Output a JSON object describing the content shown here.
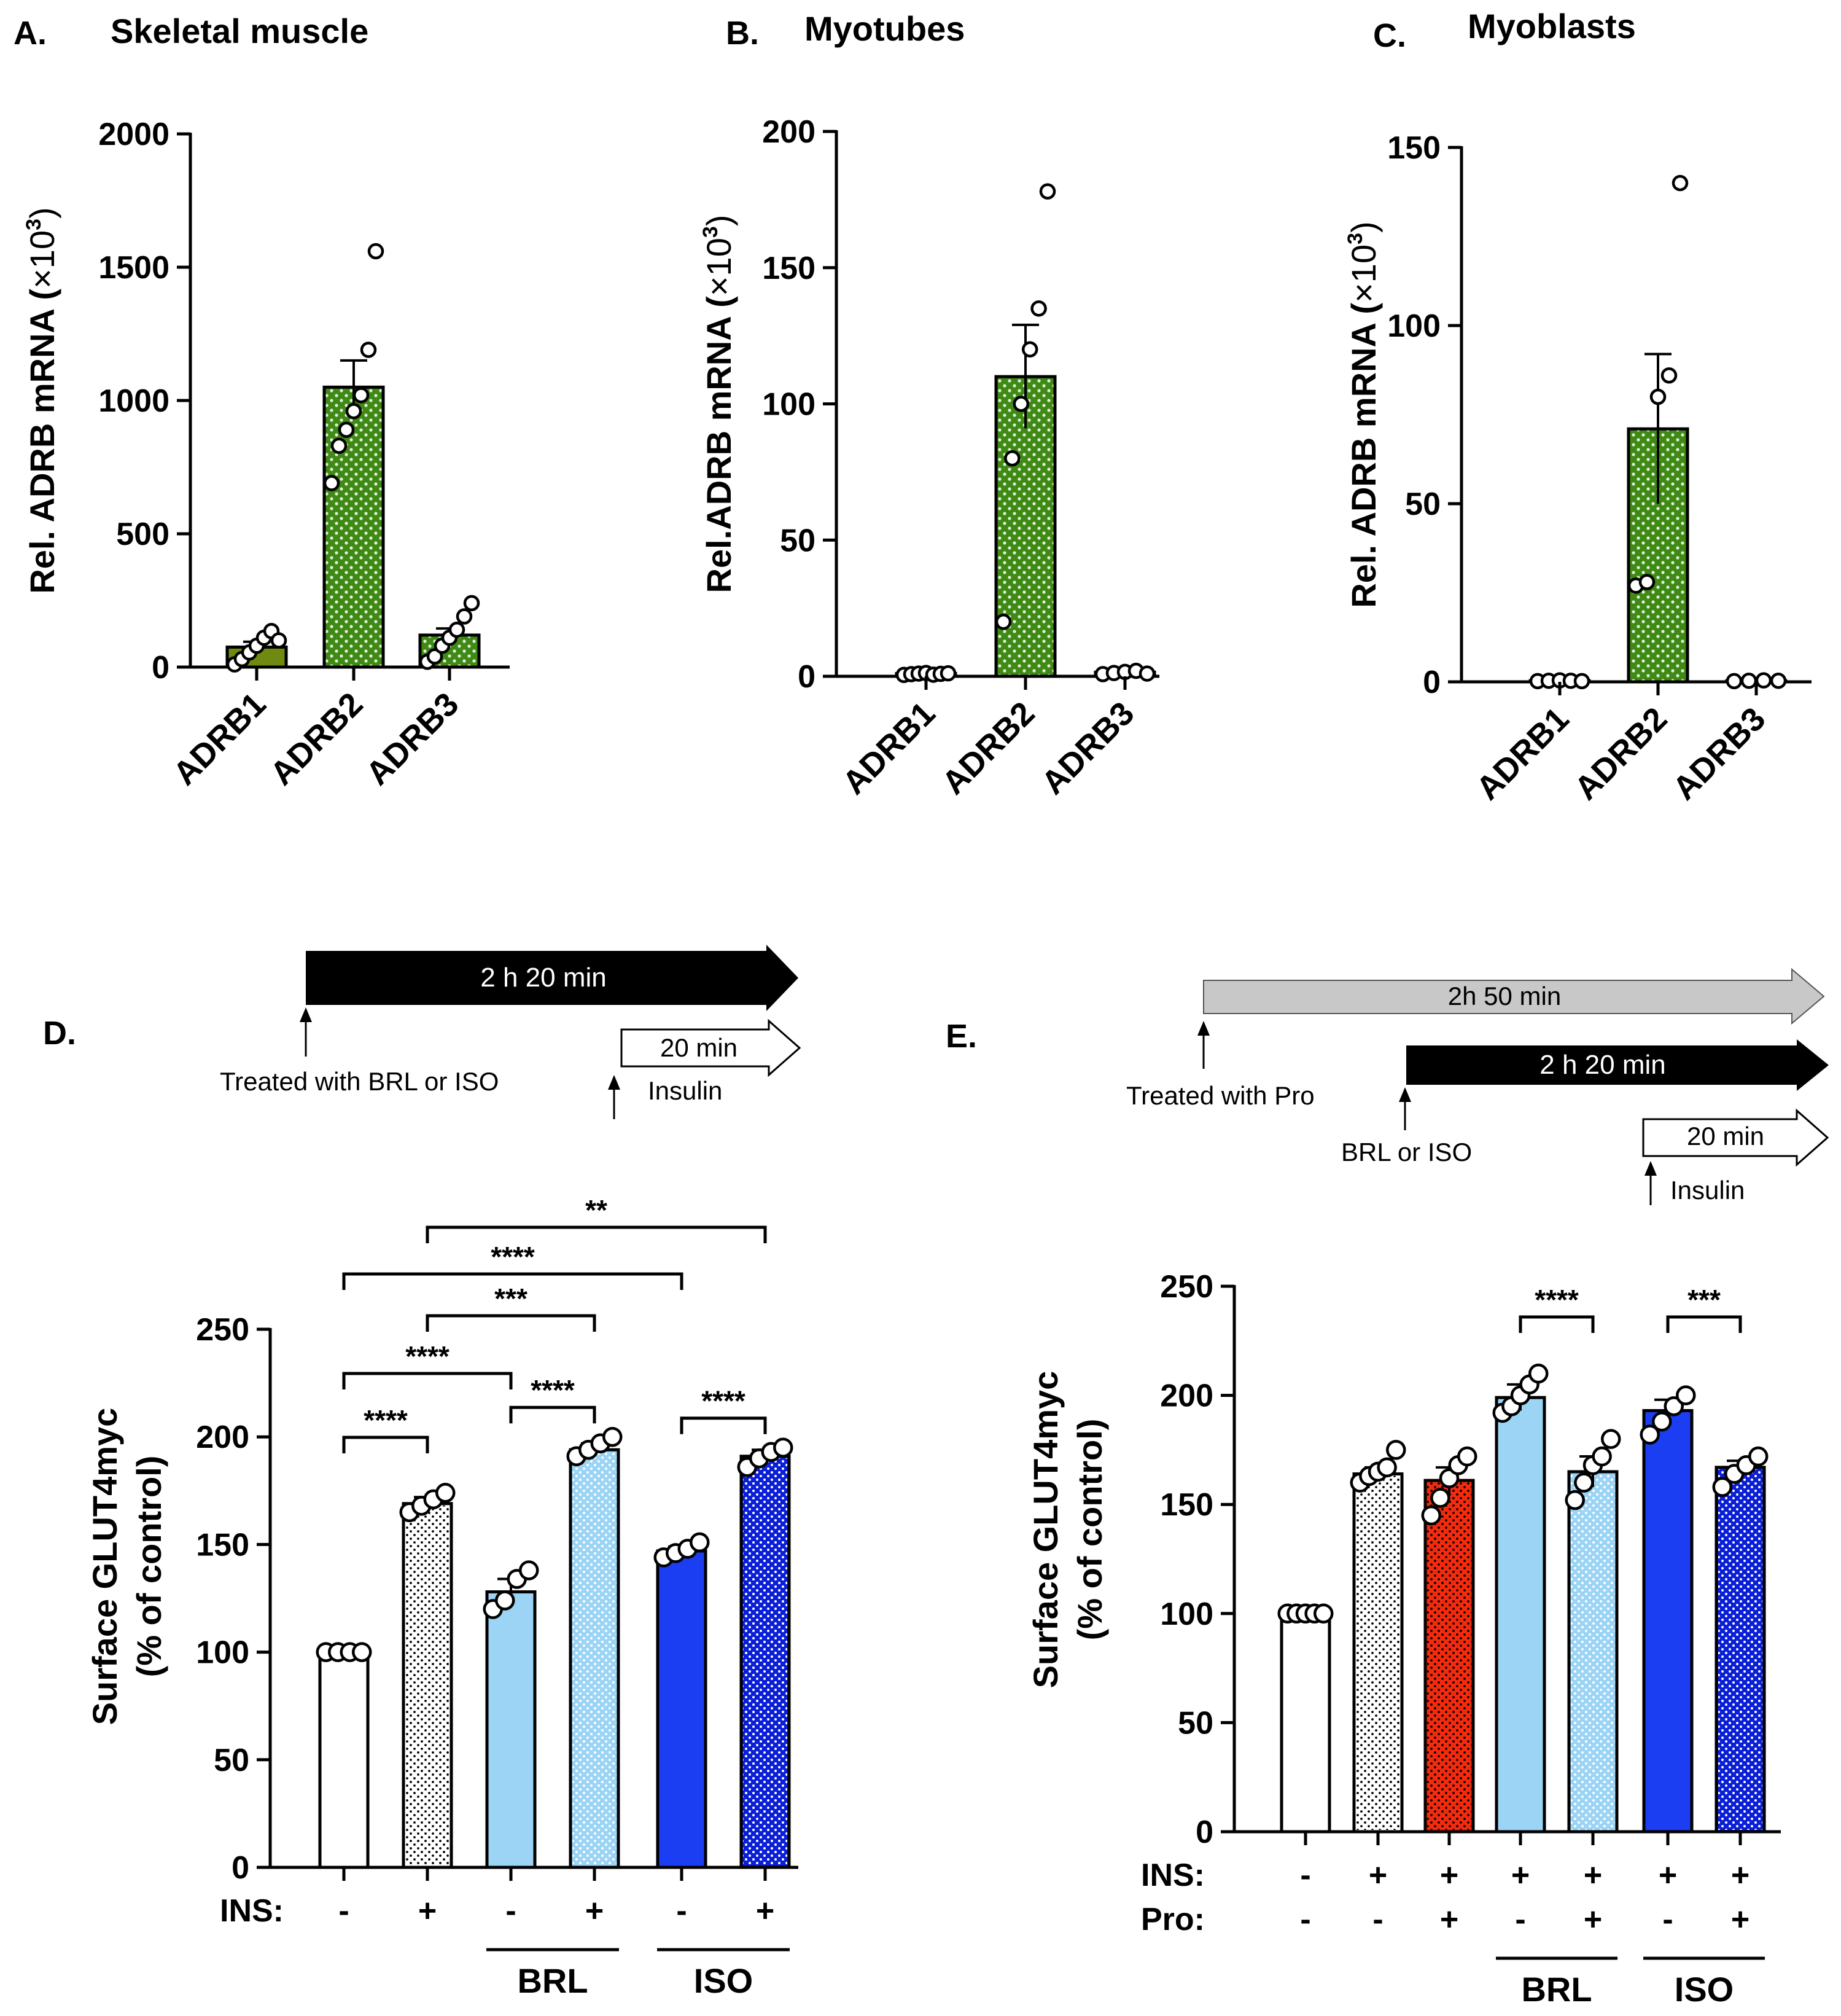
{
  "colors": {
    "olive": "#6f8a10",
    "green": "#3f8a14",
    "black": "#000000",
    "white": "#ffffff",
    "lightblue": "#9bd4f5",
    "blue": "#1c3ef2",
    "darkblue": "#0a1fd6",
    "red": "#f22b0e",
    "lightgray": "#c8c8c8"
  },
  "panels": {
    "A": {
      "letter": "A.",
      "title": "Skeletal muscle"
    },
    "B": {
      "letter": "B.",
      "title": "Myotubes"
    },
    "C": {
      "letter": "C.",
      "title": "Myoblasts"
    },
    "D": {
      "letter": "D."
    },
    "E": {
      "letter": "E."
    }
  },
  "timelines": {
    "D": {
      "main_arrow": "2 h 20 min",
      "insulin_arrow": "20 min",
      "treated_label": "Treated with BRL or ISO",
      "insulin_label": "Insulin"
    },
    "E": {
      "pro_arrow": "2h 50 min",
      "main_arrow": "2 h 20 min",
      "insulin_arrow": "20 min",
      "treated_label": "Treated with Pro",
      "brl_label": "BRL or ISO",
      "insulin_label": "Insulin"
    }
  },
  "chart_data": [
    {
      "id": "A",
      "type": "bar",
      "title": "Skeletal muscle",
      "ylabel": "Rel. ADRB mRNA (×10³)",
      "ylabel_main": "Rel. ADRB mRNA (",
      "ylabel_mult": "×10",
      "ylabel_exp": "3",
      "ylabel_close": ")",
      "ylim": [
        0,
        2000
      ],
      "yticks": [
        0,
        500,
        1000,
        1500,
        2000
      ],
      "categories": [
        "ADRB1",
        "ADRB2",
        "ADRB3"
      ],
      "values": [
        75,
        1050,
        120
      ],
      "errors": [
        20,
        100,
        25
      ],
      "fills": [
        "olive",
        "green",
        "green"
      ],
      "points": [
        [
          10,
          30,
          55,
          80,
          110,
          135,
          100
        ],
        [
          690,
          830,
          890,
          960,
          1020,
          1190,
          1560
        ],
        [
          20,
          40,
          80,
          110,
          140,
          190,
          240
        ]
      ]
    },
    {
      "id": "B",
      "type": "bar",
      "title": "Myotubes",
      "ylabel": "Rel.ADRB mRNA (×10³)",
      "ylabel_main": "Rel.ADRB mRNA (",
      "ylabel_mult": "×10",
      "ylabel_exp": "3",
      "ylabel_close": ")",
      "ylim": [
        0,
        200
      ],
      "yticks": [
        0,
        50,
        100,
        150,
        200
      ],
      "categories": [
        "ADRB1",
        "ADRB2",
        "ADRB3"
      ],
      "values": [
        1,
        110,
        1.5
      ],
      "errors": [
        0.3,
        19,
        0.4
      ],
      "fills": [
        "green",
        "green",
        "green"
      ],
      "points": [
        [
          0.5,
          0.8,
          1,
          1.2,
          0.6,
          0.9,
          1.1
        ],
        [
          20,
          80,
          100,
          120,
          135,
          178
        ],
        [
          0.8,
          1.2,
          1.6,
          2,
          1
        ]
      ]
    },
    {
      "id": "C",
      "type": "bar",
      "title": "Myoblasts",
      "ylabel": "Rel. ADRB mRNA (×10³)",
      "ylabel_main": "Rel. ADRB mRNA (",
      "ylabel_mult": "×10",
      "ylabel_exp": "3",
      "ylabel_close": ")",
      "ylim": [
        0,
        150
      ],
      "yticks": [
        0,
        50,
        100,
        150
      ],
      "categories": [
        "ADRB1",
        "ADRB2",
        "ADRB3"
      ],
      "values": [
        0.3,
        71,
        0.3
      ],
      "errors": [
        0.1,
        21,
        0.1
      ],
      "fills": [
        "green",
        "green",
        "green"
      ],
      "points": [
        [
          0.2,
          0.3,
          0.4,
          0.3,
          0.2
        ],
        [
          27,
          28,
          80,
          86,
          140
        ],
        [
          0.2,
          0.3,
          0.4,
          0.3
        ]
      ]
    },
    {
      "id": "D",
      "type": "bar",
      "ylabel_line1": "Surface GLUT4myc",
      "ylabel_line2": "(% of control)",
      "ylim": [
        0,
        250
      ],
      "yticks": [
        0,
        50,
        100,
        150,
        200,
        250
      ],
      "bars": [
        {
          "value": 100,
          "error": 0,
          "fill": "white",
          "pattern": "none",
          "points": [
            100,
            100,
            100,
            100
          ]
        },
        {
          "value": 169,
          "error": 3,
          "fill": "white",
          "pattern": "dark",
          "points": [
            165,
            168,
            171,
            174
          ]
        },
        {
          "value": 128,
          "error": 6,
          "fill": "lightblue",
          "pattern": "none",
          "points": [
            120,
            124,
            134,
            138
          ]
        },
        {
          "value": 194,
          "error": 3,
          "fill": "lightblue",
          "pattern": "light",
          "points": [
            191,
            194,
            197,
            200
          ]
        },
        {
          "value": 147,
          "error": 2,
          "fill": "blue",
          "pattern": "none",
          "points": [
            144,
            146,
            148,
            151
          ]
        },
        {
          "value": 191,
          "error": 3,
          "fill": "darkblue",
          "pattern": "light",
          "points": [
            186,
            190,
            193,
            195
          ]
        }
      ],
      "rows": [
        {
          "label": "INS:",
          "signs": [
            "-",
            "+",
            "-",
            "+",
            "-",
            "+"
          ]
        }
      ],
      "groups": [
        {
          "label": "BRL",
          "from": 2,
          "to": 3
        },
        {
          "label": "ISO",
          "from": 4,
          "to": 5
        }
      ],
      "brackets": [
        {
          "from": 0,
          "to": 1,
          "label": "****",
          "level": 0
        },
        {
          "from": 2,
          "to": 3,
          "label": "****",
          "level": 0
        },
        {
          "from": 4,
          "to": 5,
          "label": "****",
          "level": 0
        },
        {
          "from": 0,
          "to": 2,
          "label": "****",
          "level": 1
        },
        {
          "from": 1,
          "to": 3,
          "label": "***",
          "level": 2
        },
        {
          "from": 0,
          "to": 4,
          "label": "****",
          "level": 3
        },
        {
          "from": 1,
          "to": 5,
          "label": "**",
          "level": 4
        }
      ]
    },
    {
      "id": "E",
      "type": "bar",
      "ylabel_line1": "Surface GLUT4myc",
      "ylabel_line2": "(% of control)",
      "ylim": [
        0,
        250
      ],
      "yticks": [
        0,
        50,
        100,
        150,
        200,
        250
      ],
      "bars": [
        {
          "value": 100,
          "error": 0,
          "fill": "white",
          "pattern": "none",
          "points": [
            100,
            100,
            100,
            100,
            100
          ]
        },
        {
          "value": 164,
          "error": 3,
          "fill": "white",
          "pattern": "dark",
          "points": [
            160,
            163,
            165,
            167,
            175
          ]
        },
        {
          "value": 161,
          "error": 6,
          "fill": "red",
          "pattern": "dark",
          "points": [
            145,
            153,
            162,
            168,
            172
          ]
        },
        {
          "value": 199,
          "error": 6,
          "fill": "lightblue",
          "pattern": "none",
          "points": [
            192,
            195,
            200,
            205,
            210
          ]
        },
        {
          "value": 165,
          "error": 7,
          "fill": "lightblue",
          "pattern": "light",
          "points": [
            152,
            160,
            168,
            172,
            180
          ]
        },
        {
          "value": 193,
          "error": 5,
          "fill": "blue",
          "pattern": "none",
          "points": [
            182,
            188,
            195,
            200
          ]
        },
        {
          "value": 167,
          "error": 3,
          "fill": "darkblue",
          "pattern": "light",
          "points": [
            158,
            164,
            168,
            172
          ]
        }
      ],
      "rows": [
        {
          "label": "INS:",
          "signs": [
            "-",
            "+",
            "+",
            "+",
            "+",
            "+",
            "+"
          ]
        },
        {
          "label": "Pro:",
          "signs": [
            "-",
            "-",
            "+",
            "-",
            "+",
            "-",
            "+"
          ]
        }
      ],
      "groups": [
        {
          "label": "BRL",
          "from": 3,
          "to": 4
        },
        {
          "label": "ISO",
          "from": 5,
          "to": 6
        }
      ],
      "brackets": [
        {
          "from": 3,
          "to": 4,
          "label": "****",
          "level": 0
        },
        {
          "from": 5,
          "to": 6,
          "label": "***",
          "level": 0
        }
      ]
    }
  ]
}
